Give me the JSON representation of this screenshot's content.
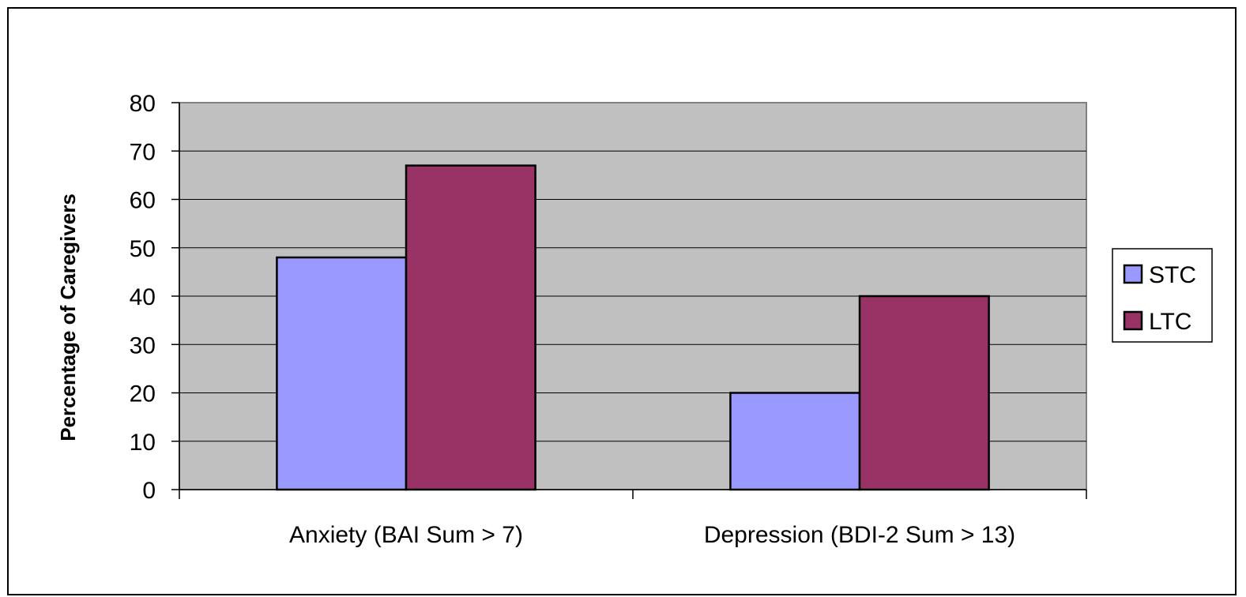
{
  "chart_data": {
    "type": "bar",
    "title": "",
    "xlabel": "",
    "ylabel": "Percentage of Caregivers",
    "ylim": [
      0,
      80
    ],
    "yticks": [
      0,
      10,
      20,
      30,
      40,
      50,
      60,
      70,
      80
    ],
    "categories": [
      "Anxiety (BAI Sum > 7)",
      "Depression (BDI-2 Sum > 13)"
    ],
    "series": [
      {
        "name": "STC",
        "values": [
          48,
          20
        ],
        "color": "#9999ff"
      },
      {
        "name": "LTC",
        "values": [
          67,
          40
        ],
        "color": "#993366"
      }
    ],
    "grid": true,
    "plot_background": "#c0c0c0",
    "legend_position": "right"
  }
}
